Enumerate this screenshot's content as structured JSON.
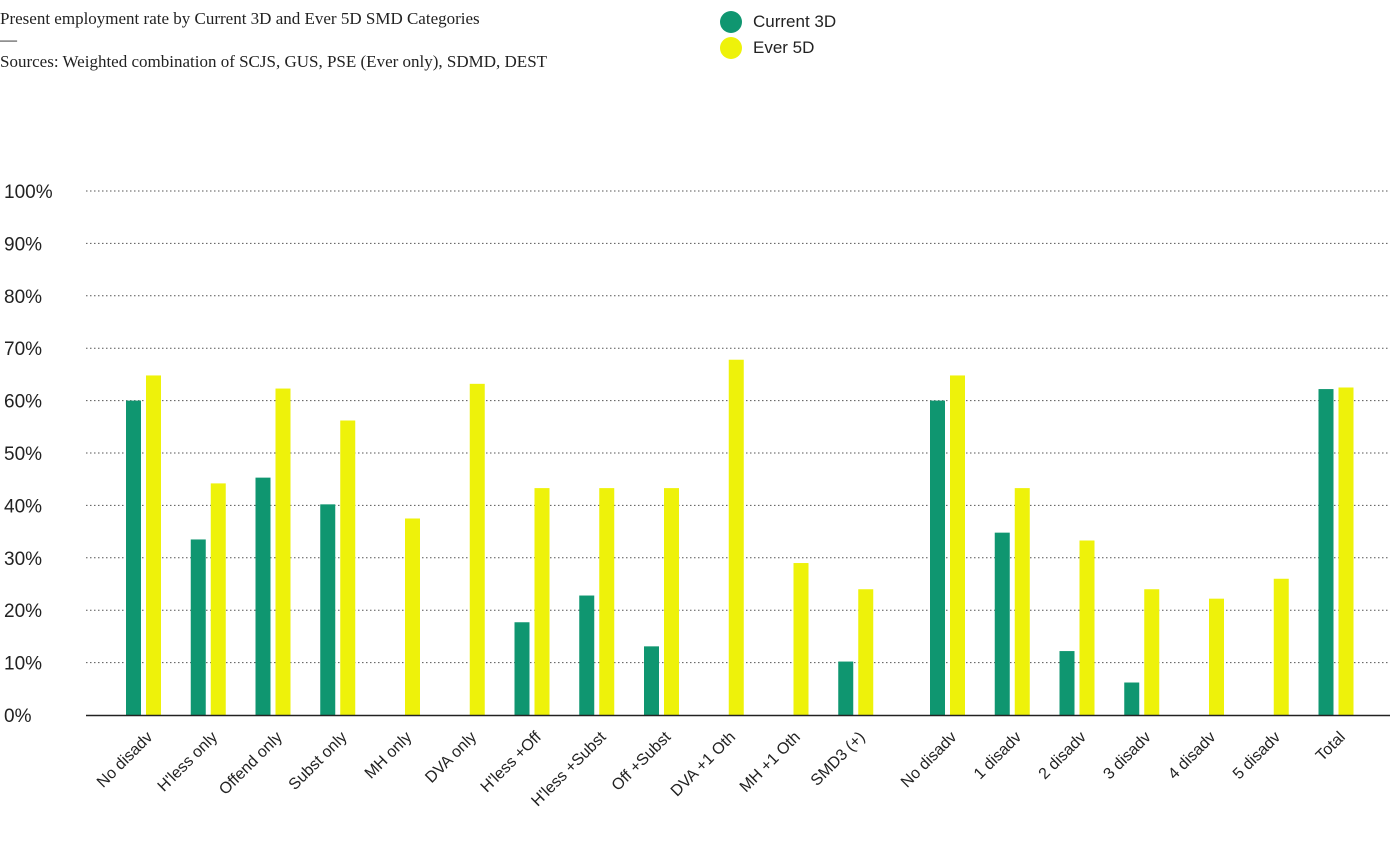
{
  "header": {
    "title": "Present employment rate by Current 3D and Ever 5D SMD Categories",
    "dash": "—",
    "sources": "Sources: Weighted combination of SCJS, GUS, PSE (Ever only), SDMD, DEST"
  },
  "colors": {
    "current": "#0f9670",
    "ever": "#eef20a",
    "grid": "#555555",
    "axis": "#222222"
  },
  "chart_data": {
    "type": "bar",
    "title": "Present employment rate by Current 3D and Ever 5D SMD Categories",
    "xlabel": "",
    "ylabel": "",
    "ylim": [
      0,
      100
    ],
    "yticks": [
      "0%",
      "10%",
      "20%",
      "30%",
      "40%",
      "50%",
      "60%",
      "70%",
      "80%",
      "90%",
      "100%"
    ],
    "grid": "horizontal dotted",
    "legend_position": "top-center",
    "categories": [
      "No disadv",
      "H'less only",
      "Offend only",
      "Subst only",
      "MH only",
      "DVA only",
      "H'less +Off",
      "H'less +Subst",
      "Off +Subst",
      "DVA +1 Oth",
      "MH +1 Oth",
      "SMD3 (+)",
      "No disadv",
      "1 disadv",
      "2 disadv",
      "3 disadv",
      "4 disadv",
      "5 disadv",
      "Total"
    ],
    "series": [
      {
        "name": "Current 3D",
        "values": [
          60,
          33.5,
          45.3,
          40.2,
          null,
          null,
          17.7,
          22.8,
          13.1,
          null,
          null,
          10.2,
          60,
          34.8,
          12.2,
          6.2,
          null,
          null,
          62.2
        ]
      },
      {
        "name": "Ever 5D",
        "values": [
          64.8,
          44.2,
          62.3,
          56.2,
          37.5,
          63.2,
          43.3,
          43.3,
          43.3,
          67.8,
          29,
          24,
          64.8,
          43.3,
          33.3,
          24,
          22.2,
          26,
          62.5
        ]
      }
    ]
  }
}
